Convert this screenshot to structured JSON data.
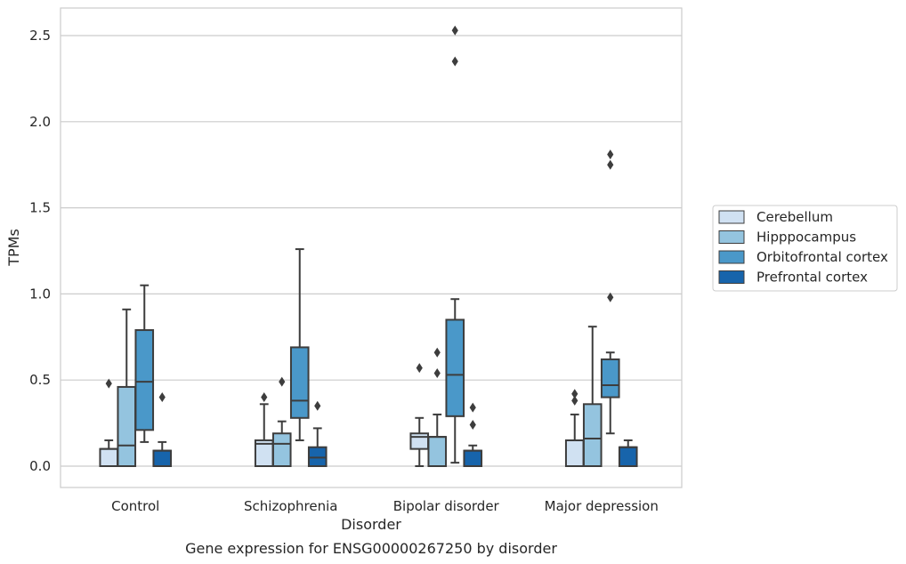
{
  "caption": "Gene expression for ENSG00000267250 by disorder",
  "chart_data": {
    "type": "box",
    "title": "",
    "xlabel": "Disorder",
    "ylabel": "TPMs",
    "categories": [
      "Control",
      "Schizophrenia",
      "Bipolar disorder",
      "Major depression"
    ],
    "ylim": [
      -0.12,
      2.66
    ],
    "yticks": [
      "0.0",
      "0.5",
      "1.0",
      "1.5",
      "2.0",
      "2.5"
    ],
    "ytick_values": [
      0.0,
      0.5,
      1.0,
      1.5,
      2.0,
      2.5
    ],
    "grid": "horizontal",
    "legend_position": "right",
    "series": [
      {
        "name": "Cerebellum",
        "color": "#d0e1f2",
        "boxes": [
          {
            "q1": 0.0,
            "median": 0.1,
            "q3": 0.1,
            "whisker_low": 0.0,
            "whisker_high": 0.15,
            "outliers": [
              0.48
            ]
          },
          {
            "q1": 0.0,
            "median": 0.13,
            "q3": 0.15,
            "whisker_low": 0.0,
            "whisker_high": 0.36,
            "outliers": [
              0.4
            ]
          },
          {
            "q1": 0.1,
            "median": 0.17,
            "q3": 0.19,
            "whisker_low": 0.0,
            "whisker_high": 0.28,
            "outliers": [
              0.57
            ]
          },
          {
            "q1": 0.0,
            "median": 0.15,
            "q3": 0.15,
            "whisker_low": 0.0,
            "whisker_high": 0.3,
            "outliers": [
              0.38,
              0.42
            ]
          }
        ]
      },
      {
        "name": "Hipppocampus",
        "color": "#94c4df",
        "boxes": [
          {
            "q1": 0.0,
            "median": 0.12,
            "q3": 0.46,
            "whisker_low": 0.0,
            "whisker_high": 0.91,
            "outliers": []
          },
          {
            "q1": 0.0,
            "median": 0.13,
            "q3": 0.19,
            "whisker_low": 0.0,
            "whisker_high": 0.26,
            "outliers": [
              0.49
            ]
          },
          {
            "q1": 0.0,
            "median": 0.17,
            "q3": 0.17,
            "whisker_low": 0.0,
            "whisker_high": 0.3,
            "outliers": [
              0.54,
              0.66
            ]
          },
          {
            "q1": 0.0,
            "median": 0.16,
            "q3": 0.36,
            "whisker_low": 0.0,
            "whisker_high": 0.81,
            "outliers": []
          }
        ]
      },
      {
        "name": "Orbitofrontal cortex",
        "color": "#4a98c9",
        "boxes": [
          {
            "q1": 0.21,
            "median": 0.49,
            "q3": 0.79,
            "whisker_low": 0.14,
            "whisker_high": 1.05,
            "outliers": []
          },
          {
            "q1": 0.28,
            "median": 0.38,
            "q3": 0.69,
            "whisker_low": 0.15,
            "whisker_high": 1.26,
            "outliers": []
          },
          {
            "q1": 0.29,
            "median": 0.53,
            "q3": 0.85,
            "whisker_low": 0.02,
            "whisker_high": 0.97,
            "outliers": [
              2.35,
              2.53
            ]
          },
          {
            "q1": 0.4,
            "median": 0.47,
            "q3": 0.62,
            "whisker_low": 0.19,
            "whisker_high": 0.66,
            "outliers": [
              0.98,
              1.75,
              1.81
            ]
          }
        ]
      },
      {
        "name": "Prefrontal cortex",
        "color": "#1764ab",
        "boxes": [
          {
            "q1": 0.0,
            "median": 0.09,
            "q3": 0.09,
            "whisker_low": 0.0,
            "whisker_high": 0.14,
            "outliers": [
              0.4
            ]
          },
          {
            "q1": 0.0,
            "median": 0.05,
            "q3": 0.11,
            "whisker_low": 0.0,
            "whisker_high": 0.22,
            "outliers": [
              0.35
            ]
          },
          {
            "q1": 0.0,
            "median": 0.09,
            "q3": 0.09,
            "whisker_low": 0.0,
            "whisker_high": 0.12,
            "outliers": [
              0.24,
              0.34
            ]
          },
          {
            "q1": 0.0,
            "median": 0.11,
            "q3": 0.11,
            "whisker_low": 0.0,
            "whisker_high": 0.15,
            "outliers": []
          }
        ]
      }
    ]
  }
}
